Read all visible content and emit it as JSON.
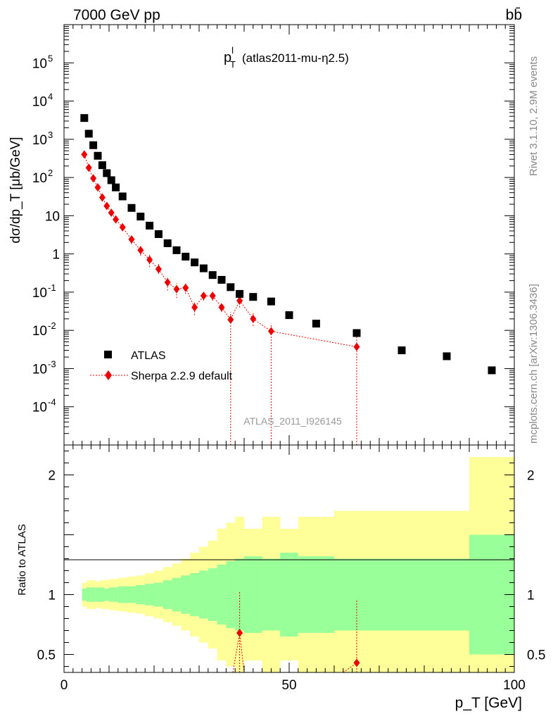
{
  "header": {
    "left": "7000 GeV pp",
    "right": "bb̄"
  },
  "side": {
    "rivet": "Rivet 3.1.10,  2.9M events",
    "mcplots": "mcplots.cern.ch [arXiv:1306.3436]"
  },
  "colors": {
    "data": "#000000",
    "mc": "#ee0000",
    "band_inner": "#99ff99",
    "band_outer": "#ffff99"
  },
  "chart_data": [
    {
      "type": "scatter",
      "title_main": "p",
      "title_sup": "l",
      "title_sub": "T",
      "title_rest": "(atlas2011-mu-η2.5)",
      "ylabel": "dσ/dp_T [μb/GeV]",
      "xlabel": "p_T [GeV]",
      "analysis_id": "ATLAS_2011_I926145",
      "xlim": [
        0,
        100
      ],
      "ylim": [
        1e-05,
        1000000.0
      ],
      "log_y": true,
      "ytick_labels": [
        "10^5",
        "10^4",
        "10^3",
        "10^2",
        "10",
        "1",
        "10^-1",
        "10^-2",
        "10^-3",
        "10^-4"
      ],
      "legend": {
        "placement": "lower-left",
        "entries": [
          "ATLAS",
          "Sherpa 2.2.9 default"
        ]
      },
      "series": [
        {
          "name": "ATLAS",
          "x": [
            4.5,
            5.5,
            6.5,
            7.5,
            8.5,
            9.5,
            10.5,
            11.5,
            13,
            15,
            17,
            19,
            21,
            23,
            25,
            27,
            29,
            31,
            33,
            35,
            37,
            39,
            42,
            46,
            50,
            56,
            65,
            75,
            85,
            95
          ],
          "y": [
            3600,
            1400,
            700,
            370,
            210,
            130,
            85,
            55,
            32,
            16,
            9.5,
            5.5,
            3.3,
            1.9,
            1.25,
            0.85,
            0.6,
            0.42,
            0.28,
            0.21,
            0.135,
            0.09,
            0.075,
            0.057,
            0.025,
            0.015,
            0.0085,
            0.003,
            0.0021,
            0.0009
          ]
        },
        {
          "name": "Sherpa 2.2.9 default",
          "x": [
            4.5,
            5.5,
            6.5,
            7.5,
            8.5,
            9.5,
            10.5,
            11.5,
            13,
            15,
            17,
            19,
            21,
            23,
            25,
            27,
            29,
            31,
            33,
            35,
            37,
            39,
            42,
            46,
            65
          ],
          "y": [
            400,
            180,
            95,
            55,
            30,
            18,
            12,
            8,
            5,
            2.4,
            1.25,
            0.7,
            0.4,
            0.18,
            0.12,
            0.13,
            0.04,
            0.08,
            0.08,
            0.04,
            0.019,
            0.06,
            0.02,
            0.0095,
            0.0037
          ],
          "err_lo": [
            360,
            150,
            80,
            45,
            25,
            15,
            10,
            6.5,
            4,
            1.8,
            0.9,
            0.45,
            0.3,
            0.11,
            0.07,
            0.09,
            0.025,
            0.06,
            0.06,
            0.03,
            1e-05,
            0.04,
            0.013,
            1e-05,
            1e-05
          ],
          "err_hi": [
            440,
            210,
            110,
            65,
            35,
            21,
            14,
            9.5,
            6,
            3,
            1.6,
            0.95,
            0.55,
            0.25,
            0.17,
            0.18,
            0.055,
            0.1,
            0.1,
            0.05,
            0.03,
            0.09,
            0.03,
            0.015,
            0.0085
          ]
        }
      ]
    },
    {
      "type": "area",
      "ylabel": "Ratio to ATLAS",
      "xlim": [
        0,
        100
      ],
      "ylim": [
        0.35,
        2.25
      ],
      "ytick_labels": [
        "2",
        "1",
        "0.5"
      ],
      "bins": [
        4,
        5,
        6,
        7,
        8,
        9,
        10,
        11,
        12,
        14,
        16,
        18,
        20,
        22,
        24,
        26,
        28,
        30,
        32,
        34,
        36,
        38,
        40,
        44,
        48,
        52,
        60,
        70,
        90,
        100
      ],
      "band_inner_lo": [
        0.95,
        0.94,
        0.94,
        0.94,
        0.94,
        0.95,
        0.94,
        0.94,
        0.93,
        0.93,
        0.92,
        0.91,
        0.9,
        0.88,
        0.86,
        0.84,
        0.82,
        0.8,
        0.78,
        0.75,
        0.72,
        0.7,
        0.68,
        0.7,
        0.65,
        0.68,
        0.7,
        0.7,
        0.5
      ],
      "band_inner_hi": [
        1.05,
        1.06,
        1.06,
        1.06,
        1.06,
        1.05,
        1.06,
        1.06,
        1.07,
        1.07,
        1.08,
        1.09,
        1.1,
        1.12,
        1.14,
        1.16,
        1.18,
        1.2,
        1.22,
        1.25,
        1.28,
        1.3,
        1.32,
        1.3,
        1.35,
        1.32,
        1.3,
        1.3,
        1.5
      ],
      "band_outer_lo": [
        0.9,
        0.88,
        0.88,
        0.89,
        0.88,
        0.88,
        0.87,
        0.87,
        0.86,
        0.85,
        0.84,
        0.82,
        0.8,
        0.77,
        0.74,
        0.7,
        0.65,
        0.6,
        0.55,
        0.45,
        0.4,
        0.35,
        0.45,
        0.35,
        0.45,
        0.35,
        0.35,
        0.35,
        0.35
      ],
      "band_outer_hi": [
        1.1,
        1.12,
        1.12,
        1.11,
        1.12,
        1.12,
        1.13,
        1.13,
        1.14,
        1.15,
        1.16,
        1.18,
        1.2,
        1.23,
        1.26,
        1.3,
        1.35,
        1.4,
        1.45,
        1.55,
        1.6,
        1.65,
        1.55,
        1.65,
        1.55,
        1.65,
        1.7,
        1.7,
        2.15
      ],
      "points": [
        {
          "x": 39,
          "y": 0.68,
          "lo": 0.35,
          "hi": 1.03
        },
        {
          "x": 65,
          "y": 0.43,
          "lo": 0.35,
          "hi": 0.95
        }
      ],
      "xtick_labels": [
        "0",
        "50",
        "100"
      ]
    }
  ]
}
